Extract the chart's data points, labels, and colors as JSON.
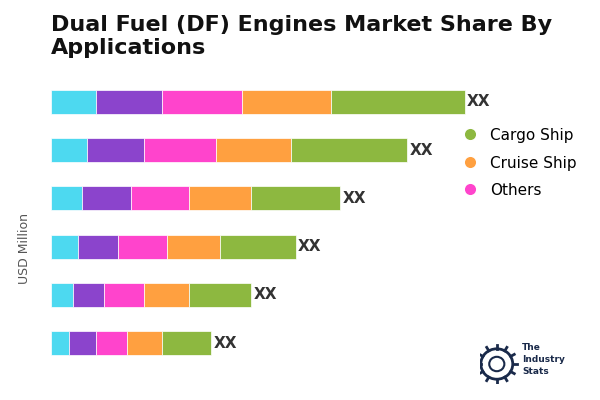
{
  "title": "Dual Fuel (DF) Engines Market Share By\nApplications",
  "ylabel": "USD Million",
  "bar_label": "XX",
  "colors": [
    "#4DD9F0",
    "#8B44CC",
    "#FF44CC",
    "#FFA040",
    "#8DB840"
  ],
  "legend_items": [
    {
      "label": "Cargo Ship",
      "color": "#8DB840"
    },
    {
      "label": "Cruise Ship",
      "color": "#FFA040"
    },
    {
      "label": "Others",
      "color": "#FF44CC"
    }
  ],
  "bars": [
    [
      10,
      15,
      18,
      20,
      30
    ],
    [
      8,
      13,
      16,
      17,
      26
    ],
    [
      7,
      11,
      13,
      14,
      20
    ],
    [
      6,
      9,
      11,
      12,
      17
    ],
    [
      5,
      7,
      9,
      10,
      14
    ],
    [
      4,
      6,
      7,
      8,
      11
    ]
  ],
  "bar_height": 0.5,
  "background_color": "#ffffff",
  "title_fontsize": 16,
  "label_fontsize": 11,
  "legend_fontsize": 11,
  "ylabel_fontsize": 9
}
